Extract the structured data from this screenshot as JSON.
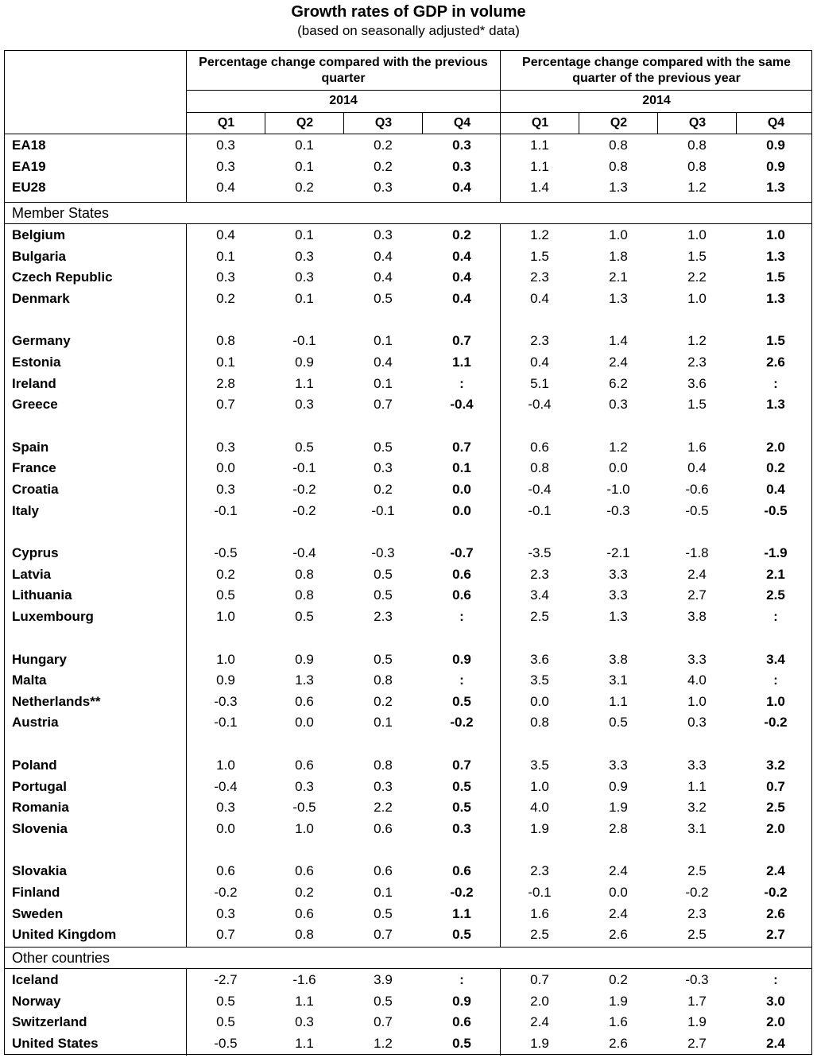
{
  "title": "Growth rates of GDP in volume",
  "subtitle": "(based on seasonally adjusted* data)",
  "header": {
    "group1": "Percentage change compared with the previous quarter",
    "group2": "Percentage change compared with the same quarter of the previous year",
    "year": "2014",
    "quarters": [
      "Q1",
      "Q2",
      "Q3",
      "Q4"
    ]
  },
  "blocks": [
    {
      "section": "",
      "groups": [
        [
          [
            "EA18",
            "0.3",
            "0.1",
            "0.2",
            "0.3",
            "1.1",
            "0.8",
            "0.8",
            "0.9"
          ],
          [
            "EA19",
            "0.3",
            "0.1",
            "0.2",
            "0.3",
            "1.1",
            "0.8",
            "0.8",
            "0.9"
          ],
          [
            "EU28",
            "0.4",
            "0.2",
            "0.3",
            "0.4",
            "1.4",
            "1.3",
            "1.2",
            "1.3"
          ]
        ]
      ]
    },
    {
      "section": "Member States",
      "groups": [
        [
          [
            "Belgium",
            "0.4",
            "0.1",
            "0.3",
            "0.2",
            "1.2",
            "1.0",
            "1.0",
            "1.0"
          ],
          [
            "Bulgaria",
            "0.1",
            "0.3",
            "0.4",
            "0.4",
            "1.5",
            "1.8",
            "1.5",
            "1.3"
          ],
          [
            "Czech Republic",
            "0.3",
            "0.3",
            "0.4",
            "0.4",
            "2.3",
            "2.1",
            "2.2",
            "1.5"
          ],
          [
            "Denmark",
            "0.2",
            "0.1",
            "0.5",
            "0.4",
            "0.4",
            "1.3",
            "1.0",
            "1.3"
          ]
        ],
        [
          [
            "Germany",
            "0.8",
            "-0.1",
            "0.1",
            "0.7",
            "2.3",
            "1.4",
            "1.2",
            "1.5"
          ],
          [
            "Estonia",
            "0.1",
            "0.9",
            "0.4",
            "1.1",
            "0.4",
            "2.4",
            "2.3",
            "2.6"
          ],
          [
            "Ireland",
            "2.8",
            "1.1",
            "0.1",
            ":",
            "5.1",
            "6.2",
            "3.6",
            ":"
          ],
          [
            "Greece",
            "0.7",
            "0.3",
            "0.7",
            "-0.4",
            "-0.4",
            "0.3",
            "1.5",
            "1.3"
          ]
        ],
        [
          [
            "Spain",
            "0.3",
            "0.5",
            "0.5",
            "0.7",
            "0.6",
            "1.2",
            "1.6",
            "2.0"
          ],
          [
            "France",
            "0.0",
            "-0.1",
            "0.3",
            "0.1",
            "0.8",
            "0.0",
            "0.4",
            "0.2"
          ],
          [
            "Croatia",
            "0.3",
            "-0.2",
            "0.2",
            "0.0",
            "-0.4",
            "-1.0",
            "-0.6",
            "0.4"
          ],
          [
            "Italy",
            "-0.1",
            "-0.2",
            "-0.1",
            "0.0",
            "-0.1",
            "-0.3",
            "-0.5",
            "-0.5"
          ]
        ],
        [
          [
            "Cyprus",
            "-0.5",
            "-0.4",
            "-0.3",
            "-0.7",
            "-3.5",
            "-2.1",
            "-1.8",
            "-1.9"
          ],
          [
            "Latvia",
            "0.2",
            "0.8",
            "0.5",
            "0.6",
            "2.3",
            "3.3",
            "2.4",
            "2.1"
          ],
          [
            "Lithuania",
            "0.5",
            "0.8",
            "0.5",
            "0.6",
            "3.4",
            "3.3",
            "2.7",
            "2.5"
          ],
          [
            "Luxembourg",
            "1.0",
            "0.5",
            "2.3",
            ":",
            "2.5",
            "1.3",
            "3.8",
            ":"
          ]
        ],
        [
          [
            "Hungary",
            "1.0",
            "0.9",
            "0.5",
            "0.9",
            "3.6",
            "3.8",
            "3.3",
            "3.4"
          ],
          [
            "Malta",
            "0.9",
            "1.3",
            "0.8",
            ":",
            "3.5",
            "3.1",
            "4.0",
            ":"
          ],
          [
            "Netherlands**",
            "-0.3",
            "0.6",
            "0.2",
            "0.5",
            "0.0",
            "1.1",
            "1.0",
            "1.0"
          ],
          [
            "Austria",
            "-0.1",
            "0.0",
            "0.1",
            "-0.2",
            "0.8",
            "0.5",
            "0.3",
            "-0.2"
          ]
        ],
        [
          [
            "Poland",
            "1.0",
            "0.6",
            "0.8",
            "0.7",
            "3.5",
            "3.3",
            "3.3",
            "3.2"
          ],
          [
            "Portugal",
            "-0.4",
            "0.3",
            "0.3",
            "0.5",
            "1.0",
            "0.9",
            "1.1",
            "0.7"
          ],
          [
            "Romania",
            "0.3",
            "-0.5",
            "2.2",
            "0.5",
            "4.0",
            "1.9",
            "3.2",
            "2.5"
          ],
          [
            "Slovenia",
            "0.0",
            "1.0",
            "0.6",
            "0.3",
            "1.9",
            "2.8",
            "3.1",
            "2.0"
          ]
        ],
        [
          [
            "Slovakia",
            "0.6",
            "0.6",
            "0.6",
            "0.6",
            "2.3",
            "2.4",
            "2.5",
            "2.4"
          ],
          [
            "Finland",
            "-0.2",
            "0.2",
            "0.1",
            "-0.2",
            "-0.1",
            "0.0",
            "-0.2",
            "-0.2"
          ],
          [
            "Sweden",
            "0.3",
            "0.6",
            "0.5",
            "1.1",
            "1.6",
            "2.4",
            "2.3",
            "2.6"
          ],
          [
            "United Kingdom",
            "0.7",
            "0.8",
            "0.7",
            "0.5",
            "2.5",
            "2.6",
            "2.5",
            "2.7"
          ]
        ]
      ]
    },
    {
      "section": "Other countries",
      "groups": [
        [
          [
            "Iceland",
            "-2.7",
            "-1.6",
            "3.9",
            ":",
            "0.7",
            "0.2",
            "-0.3",
            ":"
          ],
          [
            "Norway",
            "0.5",
            "1.1",
            "0.5",
            "0.9",
            "2.0",
            "1.9",
            "1.7",
            "3.0"
          ],
          [
            "Switzerland",
            "0.5",
            "0.3",
            "0.7",
            "0.6",
            "2.4",
            "1.6",
            "1.9",
            "2.0"
          ],
          [
            "United States",
            "-0.5",
            "1.1",
            "1.2",
            "0.5",
            "1.9",
            "2.6",
            "2.7",
            "2.4"
          ]
        ]
      ]
    }
  ]
}
